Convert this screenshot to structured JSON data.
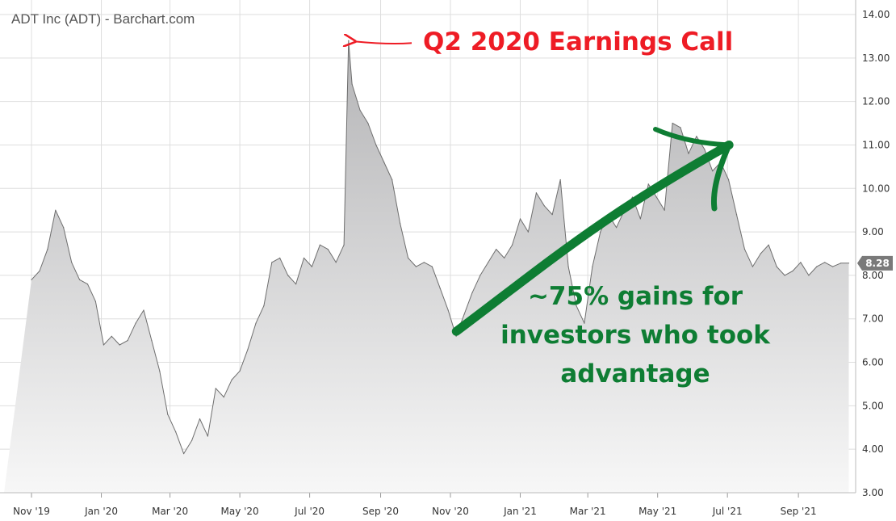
{
  "chart_data": {
    "type": "area",
    "title": "ADT Inc (ADT) - Barchart.com",
    "xlabel": "",
    "ylabel": "",
    "ylim": [
      3,
      14
    ],
    "grid": true,
    "y_ticks": [
      "3.00",
      "4.00",
      "5.00",
      "6.00",
      "7.00",
      "8.00",
      "9.00",
      "10.00",
      "11.00",
      "12.00",
      "13.00",
      "14.00"
    ],
    "x_ticks": [
      {
        "date": "2019-11-01",
        "label": "Nov '19"
      },
      {
        "date": "2020-01-01",
        "label": "Jan '20"
      },
      {
        "date": "2020-03-01",
        "label": "Mar '20"
      },
      {
        "date": "2020-05-01",
        "label": "May '20"
      },
      {
        "date": "2020-07-01",
        "label": "Jul '20"
      },
      {
        "date": "2020-09-01",
        "label": "Sep '20"
      },
      {
        "date": "2020-11-01",
        "label": "Nov '20"
      },
      {
        "date": "2021-01-01",
        "label": "Jan '21"
      },
      {
        "date": "2021-03-01",
        "label": "Mar '21"
      },
      {
        "date": "2021-05-01",
        "label": "May '21"
      },
      {
        "date": "2021-07-01",
        "label": "Jul '21"
      },
      {
        "date": "2021-09-01",
        "label": "Sep '21"
      }
    ],
    "last_price": "8.28",
    "series": [
      {
        "x": [
          "2019-11-01",
          "2019-11-08",
          "2019-11-15",
          "2019-11-22",
          "2019-11-29",
          "2019-12-06",
          "2019-12-13",
          "2019-12-20",
          "2019-12-27",
          "2020-01-03",
          "2020-01-10",
          "2020-01-17",
          "2020-01-24",
          "2020-01-31",
          "2020-02-07",
          "2020-02-14",
          "2020-02-21",
          "2020-02-28",
          "2020-03-06",
          "2020-03-13",
          "2020-03-20",
          "2020-03-27",
          "2020-04-03",
          "2020-04-10",
          "2020-04-17",
          "2020-04-24",
          "2020-05-01",
          "2020-05-08",
          "2020-05-15",
          "2020-05-22",
          "2020-05-29",
          "2020-06-05",
          "2020-06-12",
          "2020-06-19",
          "2020-06-26",
          "2020-07-03",
          "2020-07-10",
          "2020-07-17",
          "2020-07-24",
          "2020-07-31",
          "2020-08-04",
          "2020-08-07",
          "2020-08-14",
          "2020-08-21",
          "2020-08-28",
          "2020-09-04",
          "2020-09-11",
          "2020-09-18",
          "2020-09-25",
          "2020-10-02",
          "2020-10-09",
          "2020-10-16",
          "2020-10-23",
          "2020-10-30",
          "2020-11-06",
          "2020-11-13",
          "2020-11-20",
          "2020-11-27",
          "2020-12-04",
          "2020-12-11",
          "2020-12-18",
          "2020-12-25",
          "2021-01-01",
          "2021-01-08",
          "2021-01-15",
          "2021-01-22",
          "2021-01-29",
          "2021-02-05",
          "2021-02-12",
          "2021-02-19",
          "2021-02-26",
          "2021-03-05",
          "2021-03-12",
          "2021-03-19",
          "2021-03-26",
          "2021-04-02",
          "2021-04-09",
          "2021-04-16",
          "2021-04-23",
          "2021-04-30",
          "2021-05-07",
          "2021-05-14",
          "2021-05-21",
          "2021-05-28",
          "2021-06-04",
          "2021-06-11",
          "2021-06-18",
          "2021-06-25",
          "2021-07-02",
          "2021-07-09",
          "2021-07-16",
          "2021-07-23",
          "2021-07-30",
          "2021-08-06",
          "2021-08-13",
          "2021-08-20",
          "2021-08-27",
          "2021-09-03",
          "2021-09-10",
          "2021-09-17",
          "2021-09-24",
          "2021-10-01",
          "2021-10-08",
          "2021-10-15"
        ],
        "values": [
          7.9,
          8.1,
          8.6,
          9.5,
          9.1,
          8.3,
          7.9,
          7.8,
          7.4,
          6.4,
          6.6,
          6.4,
          6.5,
          6.9,
          7.2,
          6.5,
          5.8,
          4.8,
          4.4,
          3.9,
          4.2,
          4.7,
          4.3,
          5.4,
          5.2,
          5.6,
          5.8,
          6.3,
          6.9,
          7.3,
          8.3,
          8.4,
          8.0,
          7.8,
          8.4,
          8.2,
          8.7,
          8.6,
          8.3,
          8.7,
          13.4,
          12.4,
          11.8,
          11.5,
          11.0,
          10.6,
          10.2,
          9.2,
          8.4,
          8.2,
          8.3,
          8.2,
          7.7,
          7.2,
          6.6,
          7.1,
          7.6,
          8.0,
          8.3,
          8.6,
          8.4,
          8.7,
          9.3,
          9.0,
          9.9,
          9.6,
          9.4,
          10.2,
          8.2,
          7.3,
          6.9,
          8.2,
          9.0,
          9.4,
          9.1,
          9.5,
          9.8,
          9.3,
          10.1,
          9.8,
          9.5,
          11.5,
          11.4,
          10.8,
          11.2,
          10.9,
          10.4,
          10.6,
          10.2,
          9.4,
          8.6,
          8.2,
          8.5,
          8.7,
          8.2,
          8.0,
          8.1,
          8.3,
          8.0,
          8.2,
          8.3,
          8.2,
          8.28,
          8.28
        ]
      }
    ],
    "annotations": [
      {
        "text": "Q2 2020 Earnings Call",
        "color": "#ee1c25",
        "points_to": {
          "date": "2020-08-04",
          "value": 13.4
        }
      },
      {
        "lines": [
          "~75% gains for",
          "investors who took",
          "advantage"
        ],
        "color": "#0e7d33",
        "arrow_from": {
          "date": "2020-11-04",
          "value": 6.6
        },
        "arrow_to": {
          "date": "2021-07-01",
          "value": 11.0
        }
      }
    ],
    "colors": {
      "line": "#6e6e6e",
      "fill_top": "#b4b4b6",
      "fill_bottom": "#f7f7f7",
      "grid": "#dedede",
      "badge": "#7a7a7a",
      "red_annotation": "#ee1c25",
      "green_annotation": "#0e7d33"
    }
  }
}
